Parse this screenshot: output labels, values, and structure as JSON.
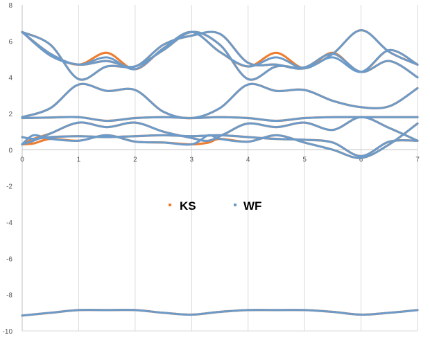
{
  "chart_data": {
    "type": "scatter",
    "title": "",
    "xlabel": "",
    "ylabel": "",
    "xlim": [
      0,
      7
    ],
    "ylim": [
      -10,
      8
    ],
    "x_ticks": [
      "0",
      "1",
      "2",
      "3",
      "4",
      "5",
      "6",
      "7"
    ],
    "y_ticks": [
      "8",
      "6",
      "4",
      "2",
      "0",
      "-2",
      "-4",
      "-6",
      "-8",
      "-10"
    ],
    "grid": "vertical",
    "legend_position": "center",
    "colors": {
      "KS": "#ed7d31",
      "WF": "#6c9bc9",
      "grid": "#d9d9d9",
      "axis": "#bfbfbf"
    },
    "series": [
      {
        "name": "KS",
        "bands": [
          {
            "x": [
              0,
              0.5,
              1,
              1.5,
              2,
              2.5,
              3,
              3.5,
              4,
              4.5,
              5,
              5.5,
              6,
              6.5,
              7
            ],
            "y": [
              -9.15,
              -9.0,
              -8.85,
              -8.85,
              -8.85,
              -9.0,
              -9.1,
              -8.95,
              -8.85,
              -8.85,
              -8.85,
              -8.95,
              -9.1,
              -9.0,
              -8.85
            ]
          },
          {
            "x": [
              0,
              0.2,
              0.5,
              1,
              1.5,
              2,
              2.5,
              3,
              3.3,
              3.5,
              4,
              4.5,
              5,
              5.5,
              6,
              6.5,
              7
            ],
            "y": [
              0.3,
              0.35,
              0.6,
              0.5,
              0.8,
              0.45,
              0.4,
              0.3,
              0.4,
              0.6,
              0.45,
              0.8,
              0.4,
              0.0,
              -0.45,
              0.3,
              1.45
            ]
          },
          {
            "x": [
              0,
              0.2,
              0.5,
              1,
              1.5,
              2,
              2.5,
              3,
              3.5,
              4,
              4.5,
              5,
              5.5,
              6,
              6.5,
              7
            ],
            "y": [
              0.7,
              0.6,
              0.7,
              0.75,
              0.7,
              0.75,
              0.8,
              0.75,
              0.8,
              0.7,
              0.6,
              0.55,
              0.4,
              -0.35,
              0.45,
              0.5
            ]
          },
          {
            "x": [
              0,
              0.2,
              0.5,
              1,
              1.5,
              2,
              2.5,
              3,
              3.3,
              3.6,
              4,
              4.5,
              5,
              5.5,
              6,
              6.5,
              7
            ],
            "y": [
              0.3,
              0.6,
              0.9,
              1.5,
              1.25,
              1.5,
              1.0,
              0.65,
              0.5,
              0.9,
              1.45,
              1.25,
              1.5,
              1.1,
              1.8,
              1.2,
              0.5
            ]
          },
          {
            "x": [
              0,
              0.5,
              1,
              1.5,
              2,
              2.5,
              3,
              3.5,
              4,
              4.5,
              5,
              5.5,
              6,
              6.5,
              7
            ],
            "y": [
              1.75,
              1.78,
              1.8,
              1.6,
              1.75,
              1.8,
              1.75,
              1.8,
              1.75,
              1.6,
              1.75,
              1.8,
              1.8,
              1.8,
              1.8
            ]
          },
          {
            "x": [
              0,
              0.5,
              1,
              1.5,
              2,
              2.5,
              3,
              3.5,
              4,
              4.5,
              5,
              5.5,
              6,
              6.5,
              7
            ],
            "y": [
              1.8,
              2.3,
              3.6,
              3.25,
              3.3,
              2.1,
              1.75,
              2.3,
              3.6,
              3.25,
              3.3,
              2.7,
              2.35,
              2.4,
              3.4
            ]
          },
          {
            "x": [
              0,
              0.5,
              1,
              1.5,
              2,
              2.5,
              3,
              3.5,
              4,
              4.5,
              5,
              5.5,
              6,
              6.5,
              7
            ],
            "y": [
              6.5,
              5.8,
              3.9,
              4.6,
              4.6,
              5.5,
              6.5,
              5.8,
              3.9,
              4.6,
              4.55,
              5.3,
              4.3,
              4.9,
              4.0
            ]
          },
          {
            "x": [
              0,
              0.5,
              1,
              1.5,
              2,
              2.5,
              3,
              3.5,
              4,
              4.5,
              5,
              5.5,
              6,
              6.5,
              7
            ],
            "y": [
              6.5,
              5.3,
              4.7,
              5.35,
              4.45,
              5.6,
              6.5,
              5.4,
              4.6,
              5.35,
              4.5,
              5.35,
              4.3,
              5.5,
              4.7
            ]
          },
          {
            "x": [
              0,
              0.5,
              1,
              1.5,
              2,
              2.5,
              3,
              3.5,
              4,
              4.5,
              5,
              5.5,
              6,
              6.5,
              7
            ],
            "y": [
              6.5,
              5.2,
              4.7,
              4.9,
              4.6,
              5.8,
              6.3,
              6.4,
              4.8,
              4.7,
              4.5,
              5.3,
              6.6,
              5.4,
              4.7
            ]
          }
        ]
      },
      {
        "name": "WF",
        "bands": [
          {
            "x": [
              0,
              0.5,
              1,
              1.5,
              2,
              2.5,
              3,
              3.5,
              4,
              4.5,
              5,
              5.5,
              6,
              6.5,
              7
            ],
            "y": [
              -9.15,
              -9.0,
              -8.85,
              -8.85,
              -8.85,
              -9.0,
              -9.1,
              -8.95,
              -8.85,
              -8.85,
              -8.85,
              -8.95,
              -9.1,
              -9.0,
              -8.85
            ]
          },
          {
            "x": [
              0,
              0.2,
              0.5,
              1,
              1.5,
              2,
              2.5,
              3,
              3.3,
              3.5,
              4,
              4.5,
              5,
              5.5,
              6,
              6.5,
              7
            ],
            "y": [
              0.3,
              0.8,
              0.6,
              0.5,
              0.8,
              0.45,
              0.4,
              0.3,
              0.8,
              0.6,
              0.45,
              0.8,
              0.4,
              0.0,
              -0.45,
              0.3,
              1.45
            ]
          },
          {
            "x": [
              0,
              0.2,
              0.5,
              1,
              1.5,
              2,
              2.5,
              3,
              3.5,
              4,
              4.5,
              5,
              5.5,
              6,
              6.5,
              7
            ],
            "y": [
              0.7,
              0.6,
              0.7,
              0.75,
              0.7,
              0.75,
              0.8,
              0.75,
              0.8,
              0.7,
              0.6,
              0.55,
              0.4,
              -0.35,
              0.45,
              0.5
            ]
          },
          {
            "x": [
              0,
              0.2,
              0.5,
              1,
              1.5,
              2,
              2.5,
              3,
              3.3,
              3.6,
              4,
              4.5,
              5,
              5.5,
              6,
              6.5,
              7
            ],
            "y": [
              0.3,
              0.5,
              0.9,
              1.5,
              1.25,
              1.5,
              1.0,
              0.65,
              0.5,
              0.9,
              1.45,
              1.25,
              1.5,
              1.1,
              1.8,
              1.2,
              0.5
            ]
          },
          {
            "x": [
              0,
              0.5,
              1,
              1.5,
              2,
              2.5,
              3,
              3.5,
              4,
              4.5,
              5,
              5.5,
              6,
              6.5,
              7
            ],
            "y": [
              1.75,
              1.78,
              1.8,
              1.6,
              1.75,
              1.8,
              1.75,
              1.8,
              1.75,
              1.6,
              1.75,
              1.8,
              1.8,
              1.8,
              1.8
            ]
          },
          {
            "x": [
              0,
              0.5,
              1,
              1.5,
              2,
              2.5,
              3,
              3.5,
              4,
              4.5,
              5,
              5.5,
              6,
              6.5,
              7
            ],
            "y": [
              1.8,
              2.3,
              3.6,
              3.25,
              3.3,
              2.1,
              1.75,
              2.3,
              3.6,
              3.25,
              3.3,
              2.7,
              2.35,
              2.4,
              3.4
            ]
          },
          {
            "x": [
              0,
              0.5,
              1,
              1.5,
              2,
              2.5,
              3,
              3.5,
              4,
              4.5,
              5,
              5.5,
              6,
              6.5,
              7
            ],
            "y": [
              6.5,
              5.8,
              3.9,
              4.6,
              4.6,
              5.5,
              6.5,
              5.8,
              3.9,
              4.6,
              4.55,
              5.3,
              4.3,
              4.9,
              4.0
            ]
          },
          {
            "x": [
              0,
              0.5,
              1,
              1.5,
              2,
              2.5,
              3,
              3.5,
              4,
              4.5,
              5,
              5.5,
              6,
              6.5,
              7
            ],
            "y": [
              6.5,
              5.3,
              4.7,
              5.1,
              4.45,
              5.6,
              6.5,
              5.4,
              4.6,
              5.1,
              4.5,
              5.1,
              4.3,
              5.5,
              4.7
            ]
          },
          {
            "x": [
              0,
              0.5,
              1,
              1.5,
              2,
              2.5,
              3,
              3.5,
              4,
              4.5,
              5,
              5.5,
              6,
              6.5,
              7
            ],
            "y": [
              6.5,
              5.2,
              4.7,
              4.9,
              4.6,
              5.8,
              6.3,
              6.4,
              4.8,
              4.7,
              4.5,
              5.3,
              6.6,
              5.4,
              4.7
            ]
          }
        ]
      }
    ]
  }
}
